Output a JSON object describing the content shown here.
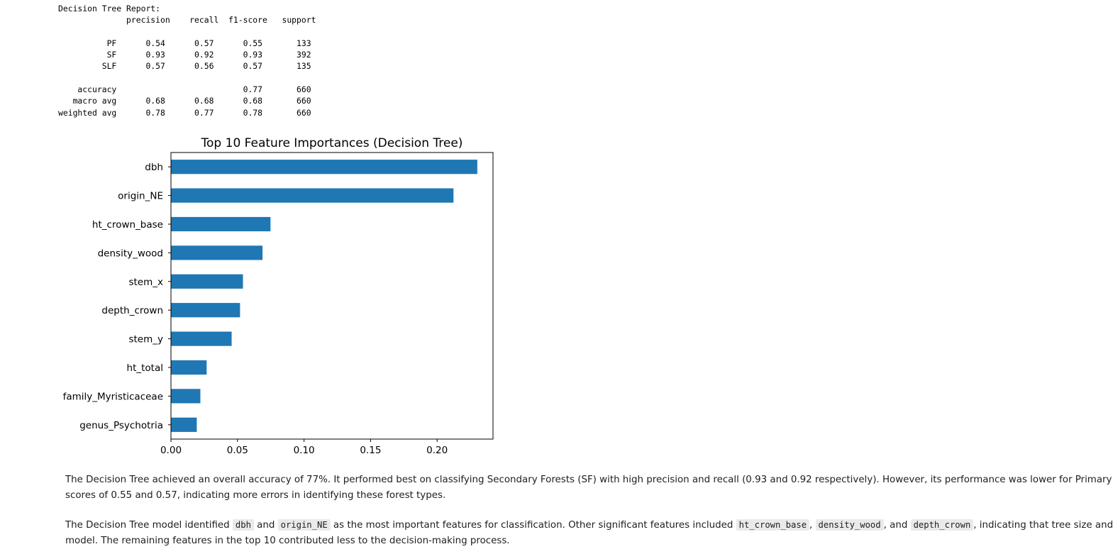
{
  "report": {
    "title": "Decision Tree Report:",
    "header": [
      "precision",
      "recall",
      "f1-score",
      "support"
    ],
    "classes": [
      {
        "label": "PF",
        "precision": "0.54",
        "recall": "0.57",
        "f1": "0.55",
        "support": "133"
      },
      {
        "label": "SF",
        "precision": "0.93",
        "recall": "0.92",
        "f1": "0.93",
        "support": "392"
      },
      {
        "label": "SLF",
        "precision": "0.57",
        "recall": "0.56",
        "f1": "0.57",
        "support": "135"
      }
    ],
    "summary": [
      {
        "label": "accuracy",
        "precision": "",
        "recall": "",
        "f1": "0.77",
        "support": "660"
      },
      {
        "label": "macro avg",
        "precision": "0.68",
        "recall": "0.68",
        "f1": "0.68",
        "support": "660"
      },
      {
        "label": "weighted avg",
        "precision": "0.78",
        "recall": "0.77",
        "f1": "0.78",
        "support": "660"
      }
    ]
  },
  "chart_data": {
    "type": "bar",
    "orientation": "horizontal",
    "title": "Top 10 Feature Importances (Decision Tree)",
    "xlabel": "",
    "ylabel": "",
    "categories": [
      "dbh",
      "origin_NE",
      "ht_crown_base",
      "density_wood",
      "stem_x",
      "depth_crown",
      "stem_y",
      "ht_total",
      "family_Myristicaceae",
      "genus_Psychotria"
    ],
    "values": [
      0.2302,
      0.2123,
      0.0748,
      0.0688,
      0.0541,
      0.0519,
      0.0456,
      0.0268,
      0.0221,
      0.0194
    ],
    "xlim": [
      0,
      0.242
    ],
    "xticks": [
      0.0,
      0.05,
      0.1,
      0.15,
      0.2
    ],
    "xtick_labels": [
      "0.00",
      "0.05",
      "0.10",
      "0.15",
      "0.20"
    ],
    "bar_color": "#1f77b4",
    "grid": false
  },
  "paragraph1": {
    "line1": "The Decision Tree achieved an overall accuracy of 77%. It performed best on classifying Secondary Forests (SF) with high precision and recall (0.93 and 0.92 respectively). However, its performance was lower for Primary Forests (PF) and Select",
    "line2": "scores of 0.55 and 0.57, indicating more errors in identifying these forest types."
  },
  "paragraph2": {
    "t1": "The Decision Tree model identified ",
    "c1": "dbh",
    "t2": " and ",
    "c2": "origin_NE",
    "t3": " as the most important features for classification. Other significant features included ",
    "c3": "ht_crown_base",
    "t4": ", ",
    "c4": "density_wood",
    "t5": ", and ",
    "c5": "depth_crown",
    "t6": ", indicating that tree size and location or",
    "line2": "model. The remaining features in the top 10 contributed less to the decision-making process."
  }
}
